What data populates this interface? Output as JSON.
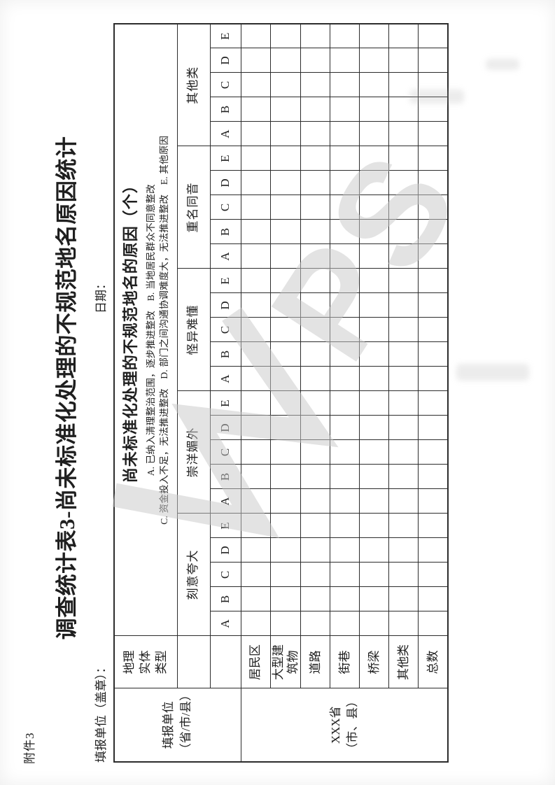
{
  "page": {
    "attachment_label": "附件3",
    "title": "调查统计表3-尚未标准化处理的不规范地名原因统计",
    "reporting_unit_label": "填报单位（盖章）：",
    "date_label": "日期：",
    "watermark_letters": "PS",
    "colors": {
      "ink": "#1f1f1f",
      "grid_line": "#2c2c2c",
      "watermark_gray": "#c9c9c9",
      "paper": "#ffffff"
    }
  },
  "table": {
    "reporting_unit_header": "填报单位（省/市/县）",
    "entity_type_header": "地理实体类型",
    "reason_header": {
      "title": "尚未标准化处理的不规范地名的原因（个）",
      "legend_line1": "A. 已纳入清理整治范围，逐步推进整改　B. 当地居民群众不同意整改",
      "legend_line2": "C. 资金投入不足，无法推进整改　D. 部门之间沟通协调难度大，无法推进整改　E. 其他原因"
    },
    "groups": [
      "刻意夸大",
      "崇洋媚外",
      "怪异难懂",
      "重名同音",
      "其他类"
    ],
    "letters": [
      "A",
      "B",
      "C",
      "D",
      "E"
    ],
    "reporting_unit_value": "XXX省（市、县）",
    "row_labels": [
      "居民区",
      "大型建筑物",
      "道路",
      "街巷",
      "桥梁",
      "其他类",
      "总数"
    ],
    "empty_cell_value": ""
  }
}
